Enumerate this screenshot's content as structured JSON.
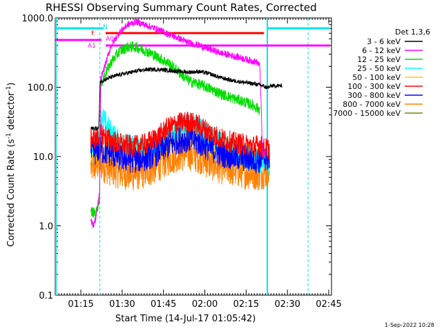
{
  "chart_data": {
    "type": "line",
    "title": "RHESSI Observing Summary Count Rates, Corrected",
    "xlabel": "Start Time (14-Jul-17 01:05:42)",
    "ylabel_main": "Corrected Count Rate (s",
    "ylabel_sup1": "-1",
    "ylabel_mid": " detector",
    "ylabel_sup2": "-1",
    "ylabel_end": ")",
    "yscale": "log",
    "ylim": [
      0.1,
      1000
    ],
    "xlim": [
      "01:05:42",
      "02:46:00"
    ],
    "xticks": [
      "01:15",
      "01:30",
      "01:45",
      "02:00",
      "02:15",
      "02:30",
      "02:45"
    ],
    "yticks": [
      "0.1",
      "1.0",
      "10.0",
      "100.0",
      "1000.0"
    ],
    "legend_title": "Det 1,3,6",
    "series": [
      {
        "name": "3 - 6 keV",
        "color": "#000000",
        "points": [
          [
            78.6,
            25.5
          ],
          [
            81.5,
            25.5
          ],
          [
            82.0,
            120
          ],
          [
            83,
            125
          ],
          [
            86,
            140
          ],
          [
            90,
            155
          ],
          [
            95,
            170
          ],
          [
            99,
            180
          ],
          [
            104,
            180
          ],
          [
            110,
            170
          ],
          [
            114,
            165
          ],
          [
            118,
            168
          ],
          [
            121,
            160
          ],
          [
            125,
            140
          ],
          [
            130,
            125
          ],
          [
            134,
            118
          ],
          [
            139,
            110
          ],
          [
            141,
            105
          ],
          [
            142,
            100
          ],
          [
            143.5,
            100
          ],
          [
            144,
            105
          ],
          [
            148,
            105
          ]
        ]
      },
      {
        "name": "6 - 12 keV",
        "color": "#ff00ff",
        "points": [
          [
            78.6,
            1.2
          ],
          [
            79.5,
            1.0
          ],
          [
            80.5,
            1.3
          ],
          [
            81.8,
            3
          ],
          [
            82.2,
            130
          ],
          [
            84,
            220
          ],
          [
            86,
            400
          ],
          [
            89,
            620
          ],
          [
            92,
            800
          ],
          [
            95,
            880
          ],
          [
            99,
            780
          ],
          [
            103,
            680
          ],
          [
            107,
            580
          ],
          [
            111,
            500
          ],
          [
            114,
            440
          ],
          [
            118,
            400
          ],
          [
            122,
            350
          ],
          [
            126,
            310
          ],
          [
            130,
            285
          ],
          [
            134,
            260
          ],
          [
            137,
            240
          ],
          [
            139,
            230
          ],
          [
            140,
            200
          ],
          [
            141,
            10
          ],
          [
            142,
            12
          ]
        ]
      },
      {
        "name": "12 - 25 keV",
        "color": "#00dd00",
        "points": [
          [
            78.6,
            1.6
          ],
          [
            80.5,
            1.5
          ],
          [
            81.8,
            2.5
          ],
          [
            82.2,
            110
          ],
          [
            84,
            160
          ],
          [
            86,
            230
          ],
          [
            89,
            330
          ],
          [
            92,
            380
          ],
          [
            95,
            380
          ],
          [
            99,
            330
          ],
          [
            103,
            270
          ],
          [
            107,
            220
          ],
          [
            111,
            160
          ],
          [
            114,
            125
          ],
          [
            118,
            110
          ],
          [
            122,
            95
          ],
          [
            126,
            80
          ],
          [
            130,
            70
          ],
          [
            134,
            62
          ],
          [
            137,
            56
          ],
          [
            139,
            50
          ],
          [
            140,
            48
          ]
        ]
      },
      {
        "name": "25 - 50 keV",
        "color": "#00ffff",
        "points": [
          [
            78.6,
            15
          ],
          [
            80.5,
            15
          ],
          [
            81.8,
            20
          ],
          [
            82.5,
            38
          ],
          [
            84,
            30
          ],
          [
            86,
            22
          ],
          [
            89,
            16
          ],
          [
            93,
            14
          ],
          [
            97,
            13
          ],
          [
            101,
            14
          ],
          [
            105,
            18
          ],
          [
            109,
            24
          ],
          [
            113,
            28
          ],
          [
            117,
            26
          ],
          [
            121,
            20
          ],
          [
            125,
            16
          ],
          [
            129,
            13
          ],
          [
            133,
            11
          ],
          [
            137,
            9
          ],
          [
            140,
            8
          ],
          [
            142,
            9
          ],
          [
            143.5,
            8
          ]
        ]
      },
      {
        "name": "50 - 100 keV",
        "color": "#ffcc00",
        "points": [
          [
            78.6,
            12
          ],
          [
            80.5,
            13
          ],
          [
            81.8,
            15
          ],
          [
            83,
            14
          ],
          [
            87,
            13
          ],
          [
            91,
            12
          ],
          [
            95,
            11
          ],
          [
            99,
            12
          ],
          [
            103,
            14
          ],
          [
            107,
            18
          ],
          [
            111,
            20
          ],
          [
            115,
            21
          ],
          [
            119,
            18
          ],
          [
            123,
            14
          ],
          [
            127,
            12
          ],
          [
            131,
            11
          ],
          [
            135,
            10
          ],
          [
            139,
            9
          ],
          [
            141,
            10
          ],
          [
            143.5,
            9
          ]
        ]
      },
      {
        "name": "100 - 300 keV",
        "color": "#ff0000",
        "points": [
          [
            78.6,
            18
          ],
          [
            80.5,
            18
          ],
          [
            81.8,
            20
          ],
          [
            83,
            21
          ],
          [
            86,
            17
          ],
          [
            90,
            15
          ],
          [
            94,
            14
          ],
          [
            98,
            15
          ],
          [
            102,
            18
          ],
          [
            106,
            25
          ],
          [
            110,
            30
          ],
          [
            114,
            32
          ],
          [
            118,
            28
          ],
          [
            122,
            22
          ],
          [
            126,
            18
          ],
          [
            130,
            16
          ],
          [
            134,
            15
          ],
          [
            138,
            14
          ],
          [
            140,
            15
          ],
          [
            141,
            13
          ],
          [
            143.5,
            13
          ]
        ]
      },
      {
        "name": "300 - 800 keV",
        "color": "#0000ff",
        "points": [
          [
            78.6,
            11
          ],
          [
            80.5,
            12
          ],
          [
            81.8,
            13
          ],
          [
            83,
            12
          ],
          [
            86,
            11
          ],
          [
            90,
            9.5
          ],
          [
            94,
            9
          ],
          [
            98,
            9.5
          ],
          [
            102,
            11
          ],
          [
            106,
            14
          ],
          [
            110,
            17
          ],
          [
            114,
            18
          ],
          [
            118,
            16
          ],
          [
            122,
            13
          ],
          [
            126,
            11
          ],
          [
            130,
            10
          ],
          [
            134,
            9.5
          ],
          [
            138,
            9
          ],
          [
            140,
            9
          ],
          [
            141,
            10
          ],
          [
            143.5,
            9
          ]
        ]
      },
      {
        "name": "800 - 7000 keV",
        "color": "#ff8000",
        "points": [
          [
            78.6,
            7
          ],
          [
            80.5,
            7.5
          ],
          [
            81.8,
            8
          ],
          [
            83,
            7.5
          ],
          [
            86,
            6.5
          ],
          [
            90,
            5.8
          ],
          [
            94,
            5.6
          ],
          [
            98,
            6
          ],
          [
            102,
            7
          ],
          [
            106,
            9
          ],
          [
            110,
            10.5
          ],
          [
            114,
            11
          ],
          [
            118,
            10
          ],
          [
            122,
            8
          ],
          [
            126,
            7
          ],
          [
            130,
            6.5
          ],
          [
            134,
            6
          ],
          [
            138,
            5.8
          ],
          [
            140,
            5.5
          ],
          [
            141,
            6
          ],
          [
            143.5,
            6
          ]
        ]
      },
      {
        "name": "7000 - 15000 keV",
        "color": "#808000",
        "points": []
      }
    ],
    "annotations": {
      "attenuator_label": "A1",
      "attenuator_zero_label": "A0",
      "flare_label": "F",
      "night_label": "N",
      "date_stamp": "1-Sep-2022 10:28"
    }
  }
}
